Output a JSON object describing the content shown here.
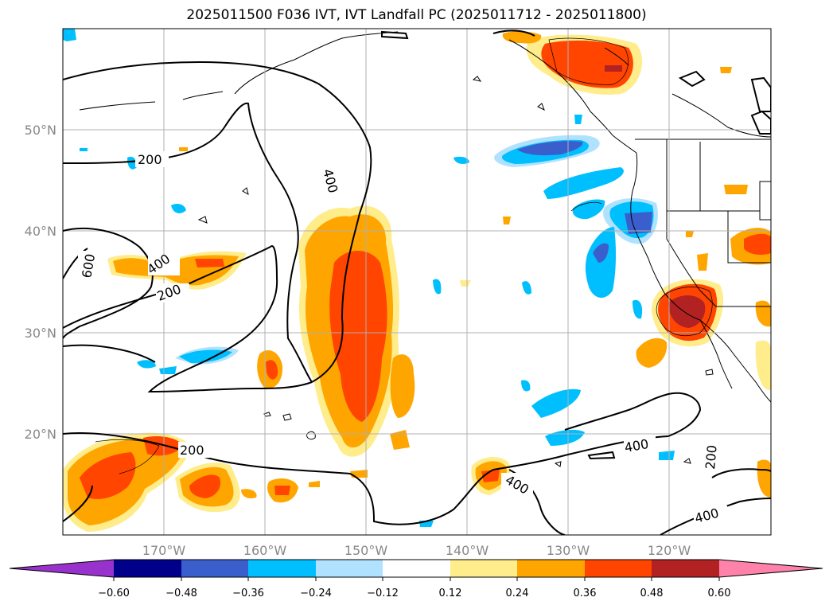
{
  "title": "2025011500 F036 IVT, IVT Landfall PC (2025011712 - 2025011800)",
  "map": {
    "lon_ticks": [
      "170°W",
      "160°W",
      "150°W",
      "140°W",
      "130°W",
      "120°W"
    ],
    "lat_ticks": [
      "50°N",
      "40°N",
      "30°N",
      "20°N"
    ],
    "contour_labels": [
      "200",
      "400",
      "600",
      "400",
      "200",
      "200",
      "400",
      "400",
      "200",
      "400"
    ]
  },
  "colorbar": {
    "labels": [
      "−0.60",
      "−0.48",
      "−0.36",
      "−0.24",
      "−0.12",
      "0.12",
      "0.24",
      "0.36",
      "0.48",
      "0.60"
    ],
    "colors": [
      "#9932cc",
      "#00008b",
      "#3a5fcd",
      "#00bfff",
      "#b0e2ff",
      "#ffffff",
      "#ffec8b",
      "#ffa500",
      "#ff4500",
      "#b22222",
      "#ff82ab"
    ]
  }
}
